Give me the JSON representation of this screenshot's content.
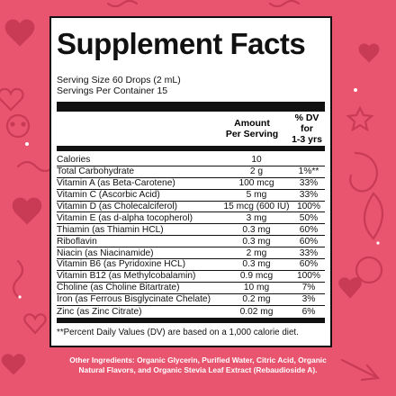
{
  "panel": {
    "title": "Supplement Facts",
    "serving_size": "Serving Size 60 Drops (2 mL)",
    "servings_per_container": "Servings Per Container 15",
    "amount_header_line1": "Amount",
    "amount_header_line2": "Per Serving",
    "dv_header_line1": "% DV for",
    "dv_header_line2": "1-3 yrs",
    "rows": [
      {
        "name": "Calories",
        "amount": "10",
        "dv": ""
      },
      {
        "name": "Total Carbohydrate",
        "amount": "2 g",
        "dv": "1%**"
      },
      {
        "name": "Vitamin A (as Beta-Carotene)",
        "amount": "100 mcg",
        "dv": "33%"
      },
      {
        "name": "Vitamin C (Ascorbic Acid)",
        "amount": "5 mg",
        "dv": "33%"
      },
      {
        "name": "Vitamin D (as Cholecalciferol)",
        "amount": "15 mcg (600 IU)",
        "dv": "100%"
      },
      {
        "name": "Vitamin E (as d-alpha tocopherol)",
        "amount": "3 mg",
        "dv": "50%"
      },
      {
        "name": "Thiamin (as Thiamin HCL)",
        "amount": "0.3 mg",
        "dv": "60%"
      },
      {
        "name": "Riboflavin",
        "amount": "0.3 mg",
        "dv": "60%"
      },
      {
        "name": "Niacin (as Niacinamide)",
        "amount": "2 mg",
        "dv": "33%"
      },
      {
        "name": "Vitamin B6 (as Pyridoxine HCL)",
        "amount": "0.3 mg",
        "dv": "60%"
      },
      {
        "name": "Vitamin B12 (as Methylcobalamin)",
        "amount": "0.9 mcg",
        "dv": "100%"
      },
      {
        "name": "Choline (as Choline Bitartrate)",
        "amount": "10 mg",
        "dv": "7%"
      },
      {
        "name": "Iron (as Ferrous Bisglycinate Chelate)",
        "amount": "0.2 mg",
        "dv": "3%"
      },
      {
        "name": "Zinc (as Zinc Citrate)",
        "amount": "0.02 mg",
        "dv": "6%"
      }
    ],
    "footnote": "**Percent Daily Values (DV) are based on a 1,000 calorie diet."
  },
  "ingredients_line1": "Other Ingredients: Organic Glycerin, Purified Water, Citric Acid, Organic",
  "ingredients_line2": "Natural Flavors, and Organic Stevia Leaf Extract (Rebaudioside A).",
  "colors": {
    "background": "#e9556f",
    "panel": "#ffffff",
    "ink": "#111111",
    "doodle": "#c93a55"
  }
}
